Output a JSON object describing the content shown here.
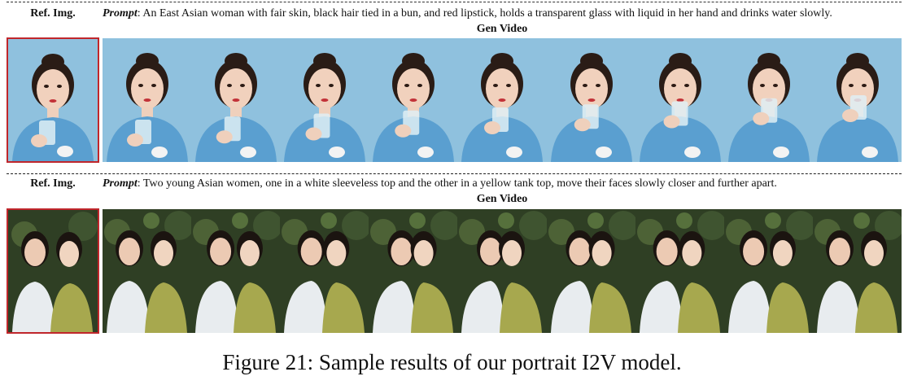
{
  "rows": [
    {
      "ref_label": "Ref. Img.",
      "prompt_label": "Prompt",
      "prompt_text": ": An East Asian woman with fair skin, black hair tied in a bun, and red lipstick, holds a transparent glass with liquid in her hand and drinks water slowly.",
      "gen_label": "Gen Video",
      "frame_count": 9,
      "ref_border_color": "#c0262b",
      "scene": "single-woman-drinking"
    },
    {
      "ref_label": "Ref. Img.",
      "prompt_label": "Prompt",
      "prompt_text": ": Two young Asian women, one in a white sleeveless top and the other in a yellow tank top, move their faces slowly closer and further apart.",
      "gen_label": "Gen Video",
      "frame_count": 9,
      "ref_border_color": "#c0262b",
      "scene": "two-women-garden"
    }
  ],
  "caption": "Figure 21: Sample results of our portrait I2V model."
}
